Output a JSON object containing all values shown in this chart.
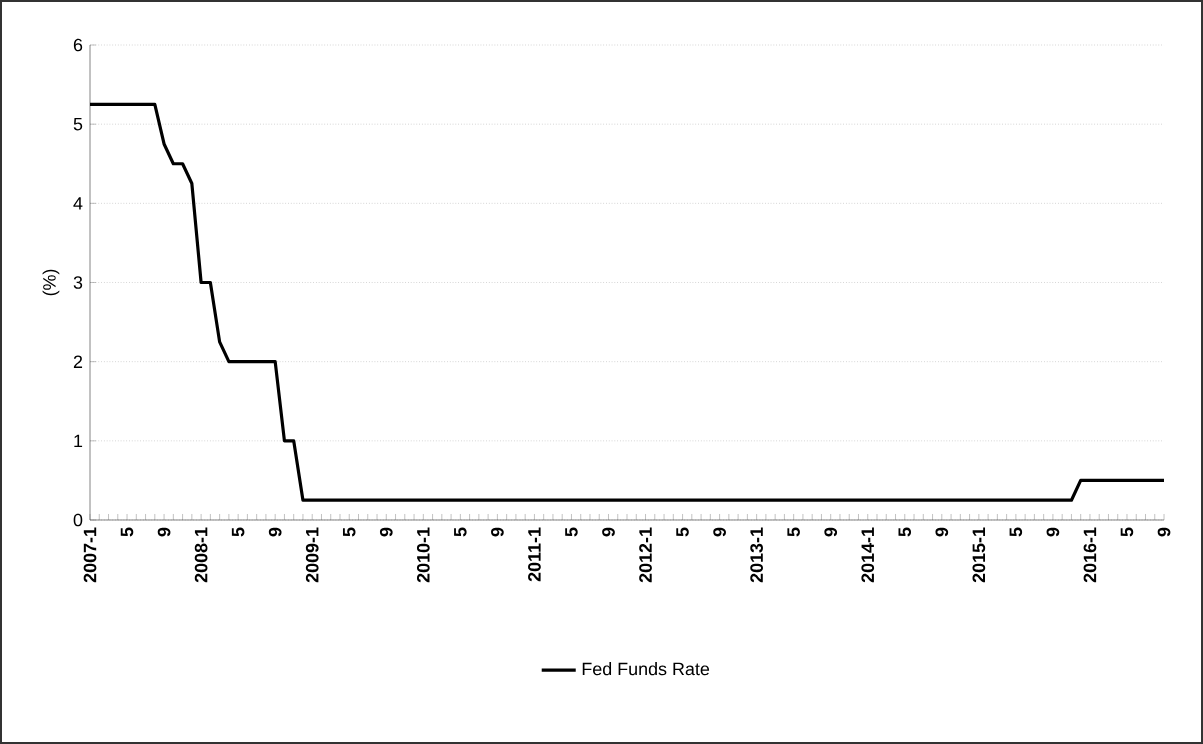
{
  "chart_data": {
    "type": "line",
    "ylabel": "(%)",
    "categories": [
      "2007-1",
      null,
      null,
      null,
      "5",
      null,
      null,
      null,
      "9",
      null,
      null,
      null,
      "2008-1",
      null,
      null,
      null,
      "5",
      null,
      null,
      null,
      "9",
      null,
      null,
      null,
      "2009-1",
      null,
      null,
      null,
      "5",
      null,
      null,
      null,
      "9",
      null,
      null,
      null,
      "2010-1",
      null,
      null,
      null,
      "5",
      null,
      null,
      null,
      "9",
      null,
      null,
      null,
      "2011-1",
      null,
      null,
      null,
      "5",
      null,
      null,
      null,
      "9",
      null,
      null,
      null,
      "2012-1",
      null,
      null,
      null,
      "5",
      null,
      null,
      null,
      "9",
      null,
      null,
      null,
      "2013-1",
      null,
      null,
      null,
      "5",
      null,
      null,
      null,
      "9",
      null,
      null,
      null,
      "2014-1",
      null,
      null,
      null,
      "5",
      null,
      null,
      null,
      "9",
      null,
      null,
      null,
      "2015-1",
      null,
      null,
      null,
      "5",
      null,
      null,
      null,
      "9",
      null,
      null,
      null,
      "2016-1",
      null,
      null,
      null,
      "5",
      null,
      null,
      null,
      "9"
    ],
    "series": [
      {
        "name": "Fed Funds Rate",
        "color": "#000000",
        "values": [
          5.25,
          5.25,
          5.25,
          5.25,
          5.25,
          5.25,
          5.25,
          5.25,
          4.75,
          4.5,
          4.5,
          4.25,
          3.0,
          3.0,
          2.25,
          2.0,
          2.0,
          2.0,
          2.0,
          2.0,
          2.0,
          1.0,
          1.0,
          0.25,
          0.25,
          0.25,
          0.25,
          0.25,
          0.25,
          0.25,
          0.25,
          0.25,
          0.25,
          0.25,
          0.25,
          0.25,
          0.25,
          0.25,
          0.25,
          0.25,
          0.25,
          0.25,
          0.25,
          0.25,
          0.25,
          0.25,
          0.25,
          0.25,
          0.25,
          0.25,
          0.25,
          0.25,
          0.25,
          0.25,
          0.25,
          0.25,
          0.25,
          0.25,
          0.25,
          0.25,
          0.25,
          0.25,
          0.25,
          0.25,
          0.25,
          0.25,
          0.25,
          0.25,
          0.25,
          0.25,
          0.25,
          0.25,
          0.25,
          0.25,
          0.25,
          0.25,
          0.25,
          0.25,
          0.25,
          0.25,
          0.25,
          0.25,
          0.25,
          0.25,
          0.25,
          0.25,
          0.25,
          0.25,
          0.25,
          0.25,
          0.25,
          0.25,
          0.25,
          0.25,
          0.25,
          0.25,
          0.25,
          0.25,
          0.25,
          0.25,
          0.25,
          0.25,
          0.25,
          0.25,
          0.25,
          0.25,
          0.25,
          0.5,
          0.5,
          0.5,
          0.5,
          0.5,
          0.5,
          0.5,
          0.5,
          0.5,
          0.5
        ]
      }
    ],
    "ylim": [
      0,
      6
    ],
    "yticks": [
      0,
      1,
      2,
      3,
      4,
      5,
      6
    ],
    "grid": "y",
    "legend": "bottom",
    "marker": "none",
    "line_style": "solid"
  }
}
